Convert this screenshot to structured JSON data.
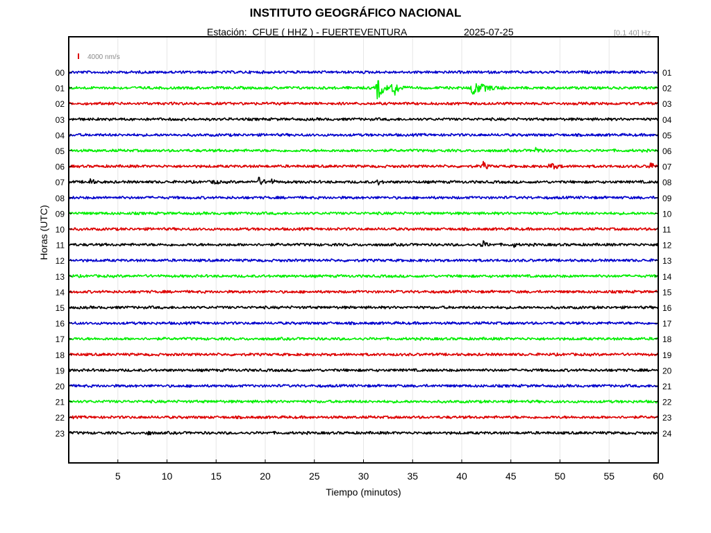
{
  "header": {
    "title": "INSTITUTO GEOGRÁFICO NACIONAL",
    "station": "Estación:  CFUE ( HHZ ) - FUERTEVENTURA",
    "date": "2025-07-25",
    "band": "[0.1 40] Hz",
    "scale_label": "4000 nm/s"
  },
  "chart_data": {
    "type": "line",
    "xlabel": "Tiempo (minutos)",
    "ylabel": "Horas (UTC)",
    "xlim": [
      0,
      60
    ],
    "x_ticks": [
      5,
      10,
      15,
      20,
      25,
      30,
      35,
      40,
      45,
      50,
      55,
      60
    ],
    "left_tick_labels": [
      "00",
      "01",
      "02",
      "03",
      "04",
      "05",
      "06",
      "07",
      "08",
      "09",
      "10",
      "11",
      "12",
      "13",
      "14",
      "15",
      "16",
      "17",
      "18",
      "19",
      "20",
      "21",
      "22",
      "23"
    ],
    "right_tick_labels": [
      "01",
      "02",
      "03",
      "04",
      "05",
      "06",
      "07",
      "08",
      "09",
      "10",
      "11",
      "12",
      "13",
      "14",
      "15",
      "16",
      "17",
      "18",
      "19",
      "20",
      "21",
      "22",
      "23",
      "24"
    ],
    "grid": true,
    "trace_colors": [
      "#0000cc",
      "#00ee00",
      "#dd0000",
      "#000000"
    ],
    "scale_bar_color": "#dd0000",
    "traces": [
      {
        "hour": "00",
        "events": []
      },
      {
        "hour": "01",
        "events": [
          {
            "t": 31.4,
            "amp": 1.0,
            "dur": 1.5
          },
          {
            "t": 33.0,
            "amp": 0.9,
            "dur": 1.3
          },
          {
            "t": 41.0,
            "amp": 0.55,
            "dur": 3.5
          }
        ]
      },
      {
        "hour": "02",
        "events": []
      },
      {
        "hour": "03",
        "events": []
      },
      {
        "hour": "04",
        "events": []
      },
      {
        "hour": "05",
        "events": [
          {
            "t": 47.5,
            "amp": 0.25,
            "dur": 1.0
          }
        ]
      },
      {
        "hour": "06",
        "events": [
          {
            "t": 42.2,
            "amp": 0.35,
            "dur": 0.8
          },
          {
            "t": 49.0,
            "amp": 0.3,
            "dur": 1.5
          },
          {
            "t": 59.2,
            "amp": 0.35,
            "dur": 0.8
          }
        ]
      },
      {
        "hour": "07",
        "events": [
          {
            "t": 2.2,
            "amp": 0.45,
            "dur": 0.6
          },
          {
            "t": 14.8,
            "amp": 0.4,
            "dur": 0.6
          },
          {
            "t": 19.3,
            "amp": 0.35,
            "dur": 1.2
          },
          {
            "t": 20.5,
            "amp": 0.3,
            "dur": 0.8
          },
          {
            "t": 31.5,
            "amp": 0.3,
            "dur": 0.5
          }
        ]
      },
      {
        "hour": "08",
        "events": []
      },
      {
        "hour": "09",
        "events": []
      },
      {
        "hour": "10",
        "events": []
      },
      {
        "hour": "11",
        "events": [
          {
            "t": 42.0,
            "amp": 0.4,
            "dur": 1.0
          },
          {
            "t": 45.3,
            "amp": 0.2,
            "dur": 0.5
          }
        ]
      },
      {
        "hour": "12",
        "events": []
      },
      {
        "hour": "13",
        "events": []
      },
      {
        "hour": "14",
        "events": []
      },
      {
        "hour": "15",
        "events": []
      },
      {
        "hour": "16",
        "events": []
      },
      {
        "hour": "17",
        "events": []
      },
      {
        "hour": "18",
        "events": []
      },
      {
        "hour": "19",
        "events": []
      },
      {
        "hour": "20",
        "events": []
      },
      {
        "hour": "21",
        "events": []
      },
      {
        "hour": "22",
        "events": []
      },
      {
        "hour": "23",
        "events": [
          {
            "t": 8.0,
            "amp": 0.25,
            "dur": 0.6
          }
        ]
      }
    ]
  }
}
